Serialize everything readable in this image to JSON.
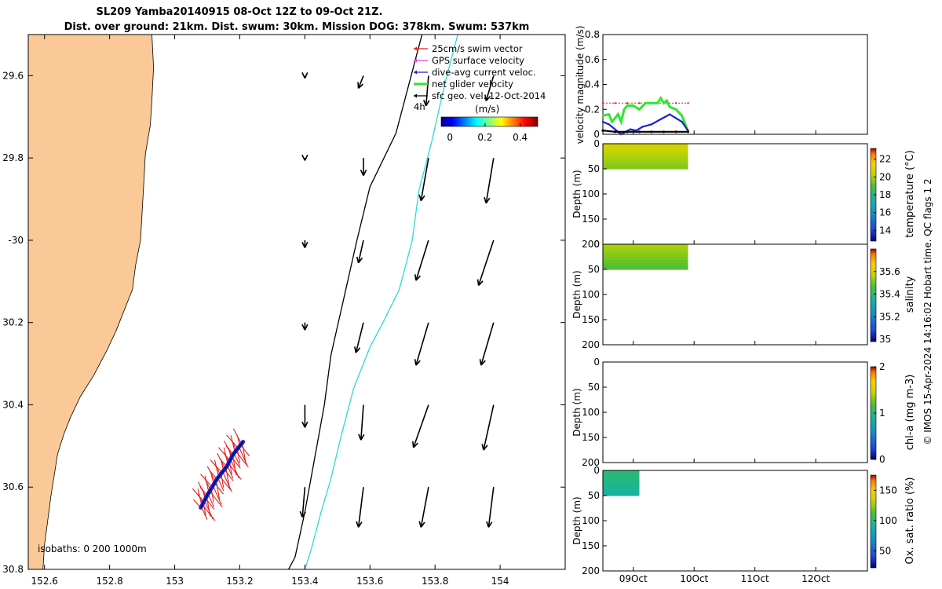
{
  "title_line1": "SL209 Yamba20140915 08-Oct 12Z to 09-Oct 21Z.",
  "title_line2": "Dist. over ground: 21km. Dist. swum: 30km. Mission DOG: 378km. Swum: 537km",
  "credit": "© IMOS 15-Apr-2024 14:16:02 Hobart time. QC flags 1  2",
  "colors": {
    "land": "#fbc998",
    "swim": "#e8201e",
    "gps": "#e040e0",
    "dac": "#1f1fd0",
    "net": "#2ee62e",
    "sfc": "#000000",
    "isobath_200": "#000000",
    "isobath_1000": "#2fd8d8"
  },
  "chart_data": [
    {
      "type": "map",
      "xlim": [
        152.55,
        154.2
      ],
      "ylim": [
        -30.8,
        -29.5
      ],
      "x_ticks": [
        152.6,
        152.8,
        153,
        153.2,
        153.4,
        153.6,
        153.8,
        154
      ],
      "x_tick_labels": [
        "152.6",
        "152.8",
        "153",
        "153.2",
        "153.4",
        "153.6",
        "153.8",
        "154"
      ],
      "y_ticks": [
        -29.6,
        -29.8,
        -30,
        -30.2,
        -30.4,
        -30.6,
        -30.8
      ],
      "y_tick_labels": [
        "29.6",
        "29.8",
        "-30",
        "30.2",
        "30.4",
        "30.6",
        "30.8"
      ],
      "legend": {
        "position": "top-right",
        "entries": [
          "25cm/s swim vector",
          "GPS surface velocity",
          "dive-avg current veloc.",
          "net glider velocity",
          "sfc geo. vel. 12-Oct-2014"
        ],
        "scale_label": "4h",
        "colorbar_label": "(m/s)",
        "colorbar_ticks": [
          0,
          0.2,
          0.4
        ],
        "colorbar_tick_labels": [
          "0",
          "0.2",
          "0.4"
        ],
        "colorbar_range": [
          -0.05,
          0.5
        ]
      },
      "isobaths_label": "isobaths: 0   200  1000m",
      "coastline": [
        [
          152.93,
          -29.5
        ],
        [
          152.935,
          -29.58
        ],
        [
          152.93,
          -29.66
        ],
        [
          152.925,
          -29.72
        ],
        [
          152.91,
          -29.79
        ],
        [
          152.905,
          -29.86
        ],
        [
          152.9,
          -29.93
        ],
        [
          152.895,
          -30.0
        ],
        [
          152.88,
          -30.06
        ],
        [
          152.87,
          -30.12
        ],
        [
          152.84,
          -30.18
        ],
        [
          152.82,
          -30.22
        ],
        [
          152.79,
          -30.27
        ],
        [
          152.75,
          -30.33
        ],
        [
          152.71,
          -30.38
        ],
        [
          152.68,
          -30.43
        ],
        [
          152.66,
          -30.47
        ],
        [
          152.64,
          -30.52
        ],
        [
          152.63,
          -30.57
        ],
        [
          152.62,
          -30.62
        ],
        [
          152.61,
          -30.68
        ],
        [
          152.6,
          -30.74
        ],
        [
          152.595,
          -30.8
        ]
      ],
      "isobath_200": [
        [
          153.77,
          -29.47
        ],
        [
          153.72,
          -29.62
        ],
        [
          153.68,
          -29.74
        ],
        [
          153.6,
          -29.87
        ],
        [
          153.56,
          -30.0
        ],
        [
          153.52,
          -30.14
        ],
        [
          153.48,
          -30.28
        ],
        [
          153.46,
          -30.4
        ],
        [
          153.43,
          -30.53
        ],
        [
          153.4,
          -30.66
        ],
        [
          153.37,
          -30.77
        ],
        [
          153.35,
          -30.8
        ]
      ],
      "isobath_1000": [
        [
          153.88,
          -29.47
        ],
        [
          153.83,
          -29.62
        ],
        [
          153.79,
          -29.76
        ],
        [
          153.75,
          -29.88
        ],
        [
          153.73,
          -30.0
        ],
        [
          153.69,
          -30.12
        ],
        [
          153.64,
          -30.2
        ],
        [
          153.6,
          -30.26
        ],
        [
          153.55,
          -30.36
        ],
        [
          153.51,
          -30.48
        ],
        [
          153.48,
          -30.58
        ],
        [
          153.45,
          -30.66
        ],
        [
          153.42,
          -30.75
        ],
        [
          153.4,
          -30.8
        ]
      ],
      "glider_track": [
        [
          153.08,
          -30.65
        ],
        [
          153.1,
          -30.62
        ],
        [
          153.13,
          -30.58
        ],
        [
          153.16,
          -30.55
        ],
        [
          153.18,
          -30.52
        ],
        [
          153.21,
          -30.49
        ]
      ],
      "surface_velocity_vectors": [
        {
          "lon": 153.4,
          "lat": -29.6,
          "u": 0.0,
          "v": -0.01
        },
        {
          "lon": 153.58,
          "lat": -29.6,
          "u": -0.02,
          "v": -0.05
        },
        {
          "lon": 153.78,
          "lat": -29.6,
          "u": -0.01,
          "v": -0.12
        },
        {
          "lon": 153.98,
          "lat": -29.6,
          "u": -0.03,
          "v": -0.1
        },
        {
          "lon": 153.4,
          "lat": -29.8,
          "u": 0.0,
          "v": -0.01
        },
        {
          "lon": 153.58,
          "lat": -29.8,
          "u": 0.0,
          "v": -0.07
        },
        {
          "lon": 153.78,
          "lat": -29.8,
          "u": -0.03,
          "v": -0.17
        },
        {
          "lon": 153.98,
          "lat": -29.8,
          "u": -0.03,
          "v": -0.18
        },
        {
          "lon": 153.4,
          "lat": -30.0,
          "u": 0.0,
          "v": -0.03
        },
        {
          "lon": 153.58,
          "lat": -30.0,
          "u": -0.02,
          "v": -0.09
        },
        {
          "lon": 153.78,
          "lat": -30.0,
          "u": -0.05,
          "v": -0.16
        },
        {
          "lon": 153.98,
          "lat": -30.0,
          "u": -0.06,
          "v": -0.18
        },
        {
          "lon": 153.4,
          "lat": -30.2,
          "u": 0.0,
          "v": -0.03
        },
        {
          "lon": 153.58,
          "lat": -30.2,
          "u": -0.03,
          "v": -0.12
        },
        {
          "lon": 153.78,
          "lat": -30.2,
          "u": -0.05,
          "v": -0.17
        },
        {
          "lon": 153.98,
          "lat": -30.2,
          "u": -0.05,
          "v": -0.17
        },
        {
          "lon": 153.4,
          "lat": -30.4,
          "u": 0.0,
          "v": -0.09
        },
        {
          "lon": 153.58,
          "lat": -30.4,
          "u": -0.01,
          "v": -0.14
        },
        {
          "lon": 153.78,
          "lat": -30.4,
          "u": -0.06,
          "v": -0.17
        },
        {
          "lon": 153.98,
          "lat": -30.4,
          "u": -0.04,
          "v": -0.18
        },
        {
          "lon": 153.4,
          "lat": -30.6,
          "u": -0.01,
          "v": -0.12
        },
        {
          "lon": 153.58,
          "lat": -30.6,
          "u": -0.02,
          "v": -0.16
        },
        {
          "lon": 153.78,
          "lat": -30.6,
          "u": -0.03,
          "v": -0.16
        },
        {
          "lon": 153.98,
          "lat": -30.6,
          "u": -0.02,
          "v": -0.16
        }
      ]
    },
    {
      "type": "line",
      "ylabel": "velocity magnitude (m/s)",
      "ylim": [
        0,
        0.8
      ],
      "y_ticks": [
        0,
        0.2,
        0.4,
        0.6,
        0.8
      ],
      "y_tick_labels": [
        "0",
        "0.2",
        "0.4",
        "0.6",
        "0.8"
      ],
      "xlim": [
        8.5,
        12.85
      ],
      "series": [
        {
          "color_key": "swim",
          "x": [
            8.5,
            8.7,
            8.9,
            9.1,
            9.3,
            9.5,
            9.7,
            9.9
          ],
          "values": [
            0.25,
            0.25,
            0.25,
            0.25,
            0.25,
            0.25,
            0.25,
            0.25
          ]
        },
        {
          "color_key": "net",
          "x": [
            8.5,
            8.6,
            8.65,
            8.75,
            8.8,
            8.85,
            8.9,
            9.0,
            9.1,
            9.2,
            9.3,
            9.4,
            9.45,
            9.5,
            9.55,
            9.6,
            9.7,
            9.8,
            9.9
          ],
          "values": [
            0.15,
            0.16,
            0.1,
            0.16,
            0.1,
            0.2,
            0.23,
            0.23,
            0.2,
            0.25,
            0.25,
            0.25,
            0.29,
            0.25,
            0.27,
            0.22,
            0.2,
            0.15,
            0.02
          ]
        },
        {
          "color_key": "dac",
          "x": [
            8.5,
            8.6,
            8.8,
            8.95,
            9.05,
            9.15,
            9.3,
            9.45,
            9.6,
            9.7,
            9.8,
            9.9
          ],
          "values": [
            0.1,
            0.08,
            0.0,
            0.04,
            0.03,
            0.06,
            0.08,
            0.12,
            0.16,
            0.13,
            0.1,
            0.03
          ]
        },
        {
          "color_key": "sfc",
          "x": [
            8.5,
            8.7,
            8.9,
            9.1,
            9.3,
            9.5,
            9.7,
            9.9
          ],
          "values": [
            0.03,
            0.02,
            0.02,
            0.02,
            0.02,
            0.02,
            0.02,
            0.02
          ]
        }
      ]
    },
    {
      "type": "heatmap",
      "ylabel": "Depth (m)",
      "colorbar_label": "temperature (°C)",
      "ylim": [
        200,
        0
      ],
      "y_ticks": [
        0,
        50,
        100,
        150,
        200
      ],
      "y_tick_labels": [
        "0",
        "50",
        "100",
        "150",
        "200"
      ],
      "colorbar_range": [
        12.8,
        23.2
      ],
      "colorbar_ticks": [
        14,
        16,
        18,
        20,
        22
      ],
      "colorbar_tick_labels": [
        "14",
        "16",
        "18",
        "20",
        "22"
      ],
      "x_extent": [
        8.5,
        9.9
      ],
      "depth_max": 50,
      "value_top": 20.6,
      "value_bottom": 19.6
    },
    {
      "type": "heatmap",
      "ylabel": "Depth (m)",
      "colorbar_label": "salinity",
      "ylim": [
        200,
        0
      ],
      "y_ticks": [
        0,
        50,
        100,
        150,
        200
      ],
      "y_tick_labels": [
        "0",
        "50",
        "100",
        "150",
        "200"
      ],
      "colorbar_range": [
        34.98,
        35.8
      ],
      "colorbar_ticks": [
        35,
        35.2,
        35.4,
        35.6
      ],
      "colorbar_tick_labels": [
        "35",
        "35.2",
        "35.4",
        "35.6"
      ],
      "x_extent": [
        8.5,
        9.9
      ],
      "depth_max": 50,
      "value_top": 35.55,
      "value_bottom": 35.47
    },
    {
      "type": "heatmap",
      "ylabel": "Depth (m)",
      "colorbar_label": "chl-a (mg m-3)",
      "ylim": [
        200,
        0
      ],
      "y_ticks": [
        0,
        50,
        100,
        150,
        200
      ],
      "y_tick_labels": [
        "0",
        "50",
        "100",
        "150",
        "200"
      ],
      "colorbar_range": [
        0,
        2
      ],
      "colorbar_ticks": [
        0,
        1,
        2
      ],
      "colorbar_tick_labels": [
        "0",
        "1",
        "2"
      ]
    },
    {
      "type": "heatmap",
      "ylabel": "Depth (m)",
      "colorbar_label": "Ox. sat. ratio (%)",
      "ylim": [
        200,
        0
      ],
      "y_ticks": [
        0,
        50,
        100,
        150,
        200
      ],
      "y_tick_labels": [
        "0",
        "50",
        "100",
        "150",
        "200"
      ],
      "colorbar_range": [
        22,
        175
      ],
      "colorbar_ticks": [
        50,
        100,
        150
      ],
      "colorbar_tick_labels": [
        "50",
        "100",
        "150"
      ],
      "x_extent": [
        8.5,
        9.1
      ],
      "depth_max": 50,
      "value_top": 100,
      "value_bottom": 92,
      "x_ticks": [
        9,
        10,
        11,
        12
      ],
      "x_tick_labels": [
        "09Oct",
        "10Oct",
        "11Oct",
        "12Oct"
      ],
      "xlim": [
        8.5,
        12.85
      ]
    }
  ]
}
